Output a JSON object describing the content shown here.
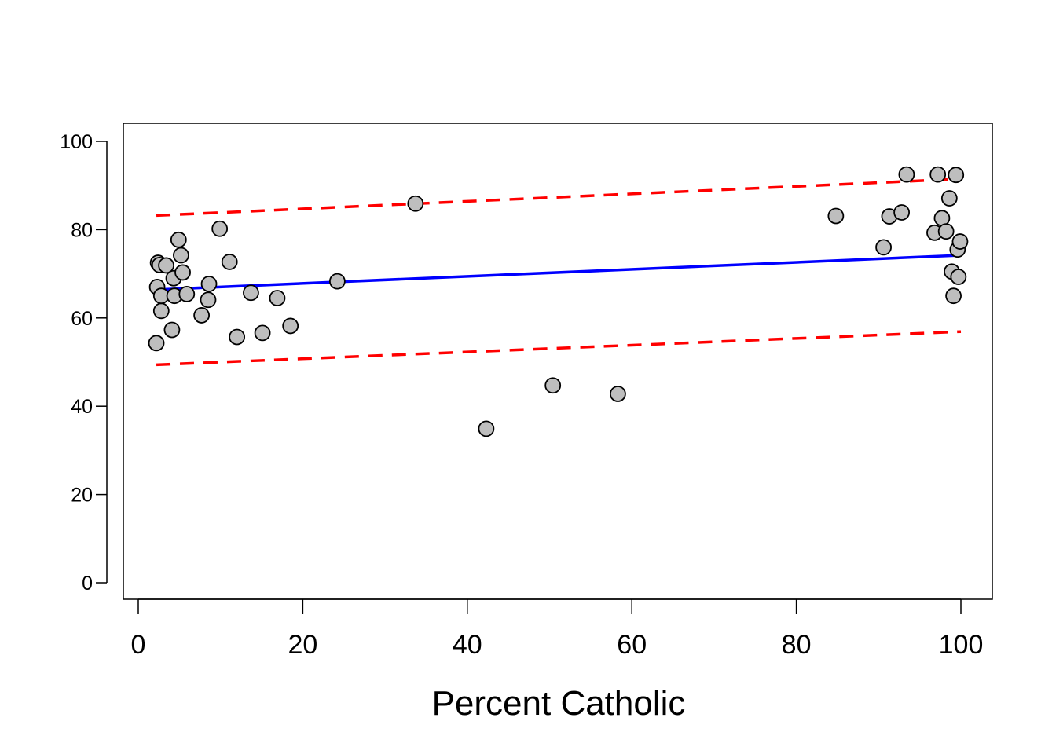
{
  "chart_data": {
    "type": "scatter",
    "title": "",
    "xlabel": "Percent Catholic",
    "ylabel": "",
    "xlim": [
      0,
      100
    ],
    "ylim": [
      0,
      100
    ],
    "xticks": [
      0,
      20,
      40,
      60,
      80,
      100
    ],
    "yticks": [
      0,
      20,
      40,
      60,
      80,
      100
    ],
    "grid": false,
    "legend": "none",
    "colors": {
      "point_fill": "#bebebe",
      "point_stroke": "#000000",
      "fit_line": "#0000ff",
      "band_line": "#ff0000"
    },
    "points": [
      {
        "x": 2.2,
        "y": 54.3
      },
      {
        "x": 2.3,
        "y": 67.0
      },
      {
        "x": 2.4,
        "y": 72.5
      },
      {
        "x": 2.6,
        "y": 72.0
      },
      {
        "x": 2.8,
        "y": 61.6
      },
      {
        "x": 2.8,
        "y": 65.0
      },
      {
        "x": 3.4,
        "y": 71.9
      },
      {
        "x": 4.1,
        "y": 57.3
      },
      {
        "x": 4.3,
        "y": 69.0
      },
      {
        "x": 4.4,
        "y": 65.0
      },
      {
        "x": 4.9,
        "y": 77.7
      },
      {
        "x": 5.2,
        "y": 74.2
      },
      {
        "x": 5.4,
        "y": 70.3
      },
      {
        "x": 5.9,
        "y": 65.4
      },
      {
        "x": 7.7,
        "y": 60.6
      },
      {
        "x": 8.5,
        "y": 64.1
      },
      {
        "x": 8.6,
        "y": 67.7
      },
      {
        "x": 9.9,
        "y": 80.2
      },
      {
        "x": 11.1,
        "y": 72.7
      },
      {
        "x": 12.0,
        "y": 55.7
      },
      {
        "x": 13.7,
        "y": 65.7
      },
      {
        "x": 15.1,
        "y": 56.6
      },
      {
        "x": 16.9,
        "y": 64.5
      },
      {
        "x": 18.5,
        "y": 58.2
      },
      {
        "x": 24.2,
        "y": 68.3
      },
      {
        "x": 33.7,
        "y": 85.9
      },
      {
        "x": 42.3,
        "y": 34.9
      },
      {
        "x": 50.4,
        "y": 44.7
      },
      {
        "x": 58.3,
        "y": 42.8
      },
      {
        "x": 84.8,
        "y": 83.1
      },
      {
        "x": 90.6,
        "y": 76.0
      },
      {
        "x": 91.3,
        "y": 83.0
      },
      {
        "x": 92.8,
        "y": 83.9
      },
      {
        "x": 93.4,
        "y": 92.5
      },
      {
        "x": 96.8,
        "y": 79.3
      },
      {
        "x": 97.2,
        "y": 92.5
      },
      {
        "x": 97.7,
        "y": 82.6
      },
      {
        "x": 98.2,
        "y": 79.6
      },
      {
        "x": 98.6,
        "y": 87.1
      },
      {
        "x": 98.9,
        "y": 70.5
      },
      {
        "x": 99.1,
        "y": 65.0
      },
      {
        "x": 99.4,
        "y": 92.4
      },
      {
        "x": 99.6,
        "y": 75.5
      },
      {
        "x": 99.7,
        "y": 69.3
      },
      {
        "x": 99.9,
        "y": 77.3
      }
    ],
    "fit_line": {
      "x": [
        2.2,
        100
      ],
      "y": [
        66.4,
        74.2
      ]
    },
    "prediction_band": {
      "upper": {
        "x": [
          2.2,
          100
        ],
        "y": [
          83.2,
          91.5
        ]
      },
      "lower": {
        "x": [
          2.2,
          100
        ],
        "y": [
          49.4,
          56.9
        ]
      }
    }
  }
}
